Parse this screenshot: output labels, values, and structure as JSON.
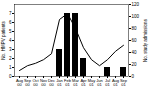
{
  "chart_data": {
    "type": "bar",
    "categories": [
      "Aug\n00",
      "Sep\n00",
      "Oct\n00",
      "Nov\n00",
      "Dec\n00",
      "Jan\n01",
      "Feb\n01",
      "Mar\n01",
      "Apr\n01",
      "May\n01",
      "Jun\n01",
      "Jul\n01",
      "Aug\n01",
      "Sep\n01"
    ],
    "series": [
      {
        "type": "bar",
        "color": "#000000",
        "values": [
          0,
          0,
          0,
          0,
          0,
          3,
          7,
          7,
          2,
          0,
          0,
          1,
          0,
          1
        ]
      },
      {
        "type": "line",
        "color": "#000000",
        "axis": "y2",
        "values": [
          10,
          18,
          22,
          28,
          38,
          95,
          105,
          80,
          48,
          28,
          18,
          28,
          42,
          52
        ]
      }
    ],
    "ylim": [
      0,
      8
    ],
    "yticks": [
      0,
      1,
      2,
      3,
      4,
      5,
      6,
      7
    ],
    "y2lim": [
      0,
      120
    ],
    "y2ticks": [
      0,
      20,
      40,
      60,
      80,
      100,
      120
    ],
    "ylabel": "No. HMPV patients",
    "y2label": "No. study admissions"
  }
}
